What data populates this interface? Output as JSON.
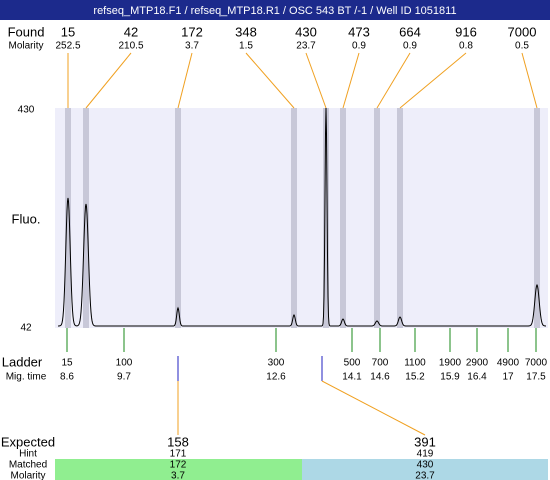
{
  "title": "refseq_MTP18.F1 / refseq_MTP18.R1 / OSC 543 BT /-1 / Well ID 1051811",
  "found": {
    "label": "Found",
    "molarity_label": "Molarity",
    "peaks": [
      {
        "size": 15,
        "molarity": 252.5
      },
      {
        "size": 42,
        "molarity": 210.5
      },
      {
        "size": 172,
        "molarity": 3.7
      },
      {
        "size": 348,
        "molarity": 1.5
      },
      {
        "size": 430,
        "molarity": 23.7
      },
      {
        "size": 473,
        "molarity": 0.9
      },
      {
        "size": 664,
        "molarity": 0.9
      },
      {
        "size": 916,
        "molarity": 0.8
      },
      {
        "size": 7000,
        "molarity": 0.5
      }
    ]
  },
  "plot": {
    "y_label": "Fluo.",
    "y_top": 430,
    "y_bottom": 42
  },
  "ladder": {
    "label": "Ladder",
    "time_label": "Mig. time",
    "items": [
      {
        "size": 15,
        "time": 8.6
      },
      {
        "size": 100,
        "time": 9.7
      },
      {
        "size": 300,
        "time": 12.6
      },
      {
        "size": 500,
        "time": 14.1
      },
      {
        "size": 700,
        "time": 14.6
      },
      {
        "size": 1100,
        "time": 15.2
      },
      {
        "size": 1900,
        "time": 15.9
      },
      {
        "size": 2900,
        "time": 16.4
      },
      {
        "size": 4900,
        "time": 17
      },
      {
        "size": 7000,
        "time": 17.5
      }
    ]
  },
  "expected": {
    "label": "Expected",
    "hint_label": "Hint",
    "matched_label": "Matched",
    "molarity_label": "Molarity",
    "items": [
      {
        "expected": 158,
        "hint": 171,
        "matched": 172,
        "molarity": 3.7
      },
      {
        "expected": 391,
        "hint": 419,
        "matched": 430,
        "molarity": 23.7
      }
    ]
  }
}
